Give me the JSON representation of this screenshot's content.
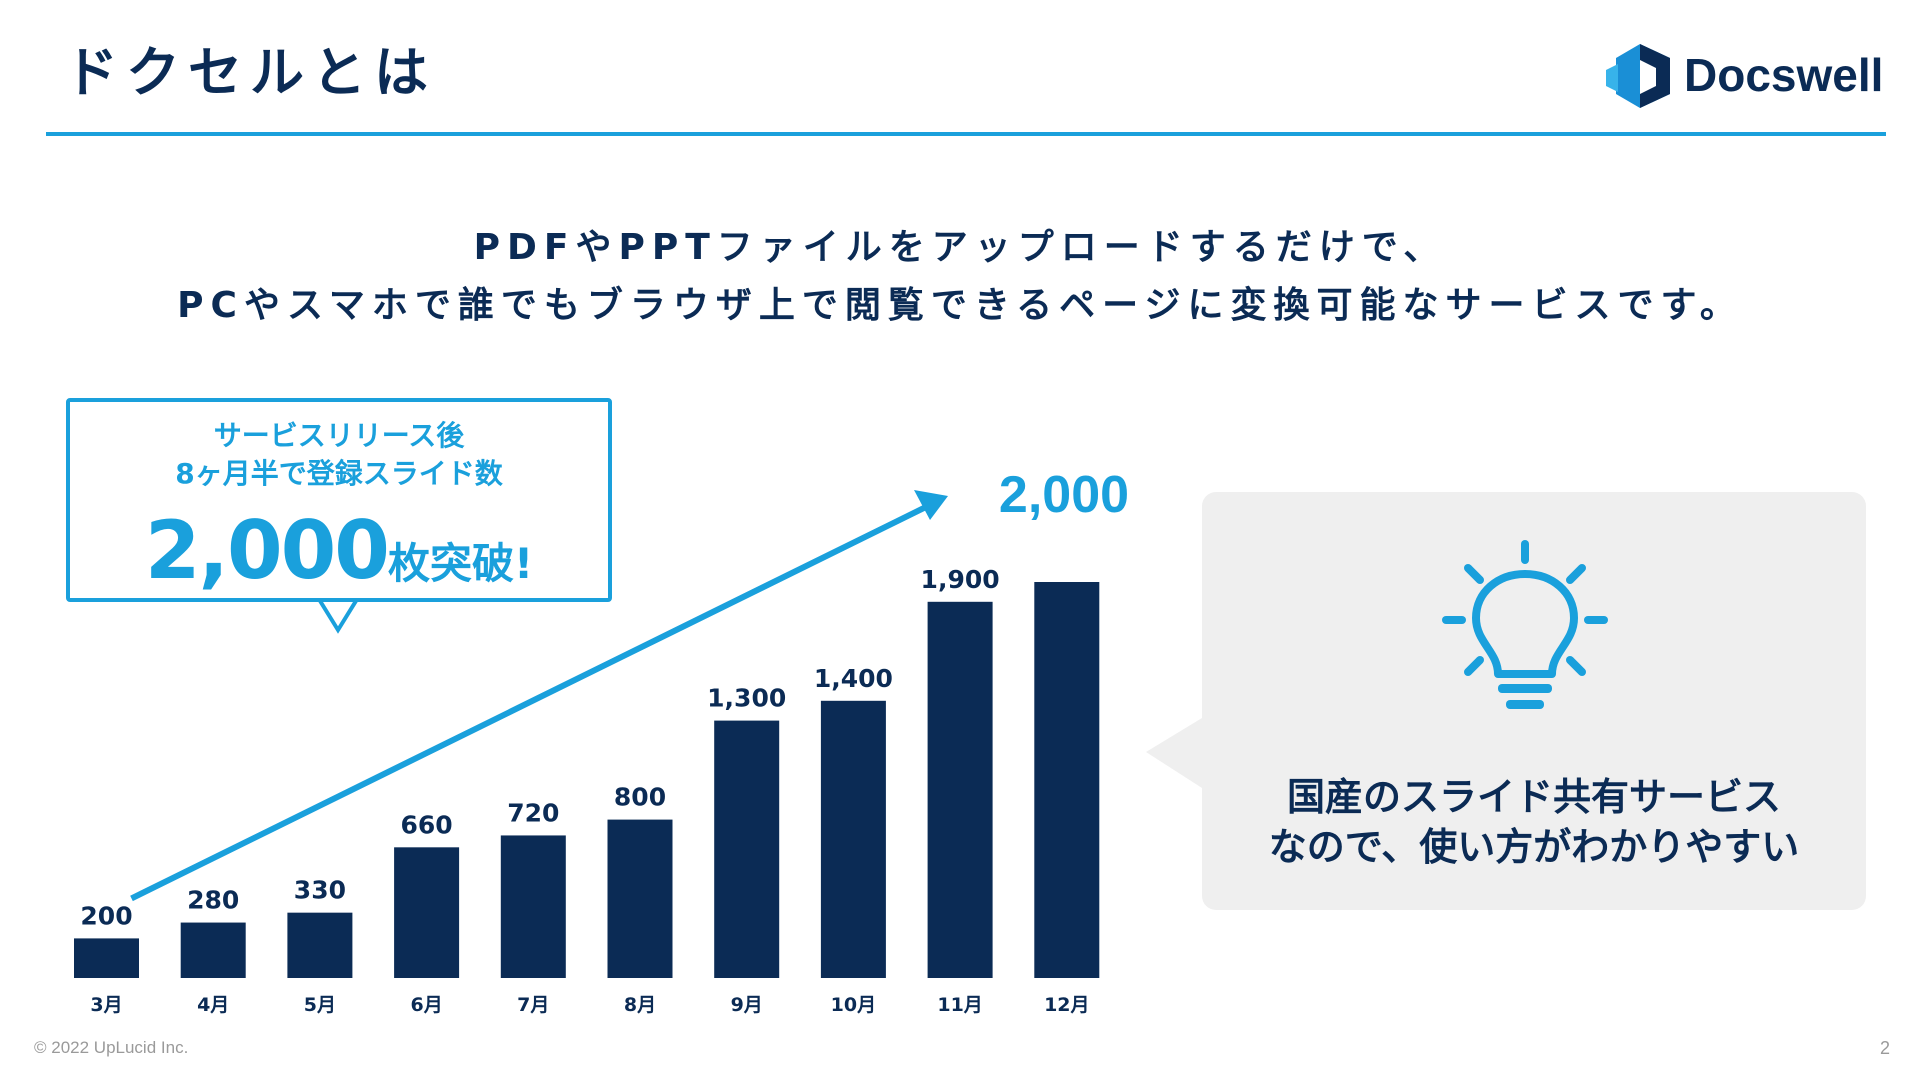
{
  "header": {
    "title": "ドクセルとは",
    "logo_text": "Docswell"
  },
  "lead": {
    "line1": "PDFやPPTファイルをアップロードするだけで、",
    "line2": "PCやスマホで誰でもブラウザ上で閲覧できるページに変換可能なサービスです。"
  },
  "callout": {
    "line1": "サービスリリース後",
    "line2": "8ヶ月半で登録スライド数",
    "number": "2,000",
    "suffix": "枚突破!"
  },
  "chart_data": {
    "type": "bar",
    "categories": [
      "3月",
      "4月",
      "5月",
      "6月",
      "7月",
      "8月",
      "9月",
      "10月",
      "11月",
      "12月"
    ],
    "values": [
      200,
      280,
      330,
      660,
      720,
      800,
      1300,
      1400,
      1900,
      2000
    ],
    "data_labels": [
      "200",
      "280",
      "330",
      "660",
      "720",
      "800",
      "1,300",
      "1,400",
      "1,900",
      ""
    ],
    "trend_label": "2,000",
    "title": "",
    "xlabel": "",
    "ylabel": "",
    "ylim": [
      0,
      2000
    ],
    "grid": false,
    "legend": "none",
    "bar_color": "#0b2b55",
    "arrow_color": "#1aa0dc"
  },
  "info": {
    "line1": "国産のスライド共有サービス",
    "line2": "なので、使い方がわかりやすい",
    "icon": "lightbulb-icon"
  },
  "colors": {
    "accent": "#1aa0dc",
    "navy": "#0b2b55",
    "panel": "#efefef"
  },
  "footer": {
    "copyright": "© 2022 UpLucid Inc.",
    "page": "2"
  }
}
